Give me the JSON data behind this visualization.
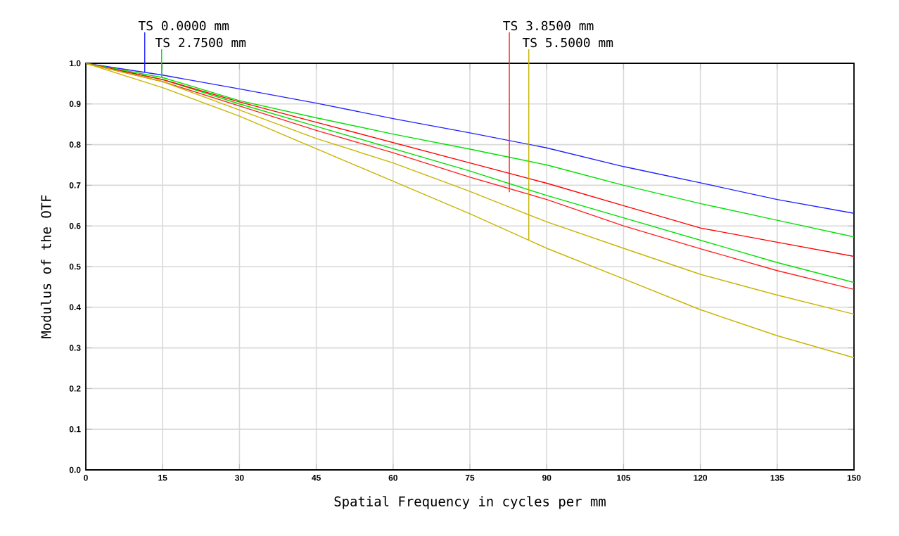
{
  "chart_data": {
    "type": "line",
    "xlabel": "Spatial Frequency in cycles per mm",
    "ylabel": "Modulus of the OTF",
    "x": [
      0,
      15,
      30,
      45,
      60,
      75,
      90,
      105,
      120,
      135,
      150
    ],
    "series": [
      {
        "color": "#2020ff",
        "values": [
          1.0,
          0.971,
          0.937,
          0.902,
          0.864,
          0.829,
          0.792,
          0.746,
          0.706,
          0.665,
          0.631
        ]
      },
      {
        "color": "#00e000",
        "values": [
          1.0,
          0.965,
          0.908,
          0.866,
          0.826,
          0.789,
          0.75,
          0.7,
          0.655,
          0.614,
          0.573
        ]
      },
      {
        "color": "#00e000",
        "values": [
          1.0,
          0.96,
          0.9,
          0.845,
          0.79,
          0.735,
          0.675,
          0.62,
          0.565,
          0.51,
          0.461
        ]
      },
      {
        "color": "#ff0000",
        "values": [
          1.0,
          0.96,
          0.905,
          0.855,
          0.805,
          0.755,
          0.705,
          0.65,
          0.595,
          0.56,
          0.525
        ]
      },
      {
        "color": "#ff2020",
        "values": [
          1.0,
          0.955,
          0.895,
          0.835,
          0.78,
          0.72,
          0.665,
          0.6,
          0.544,
          0.49,
          0.444
        ]
      },
      {
        "color": "#c8b400",
        "values": [
          1.0,
          0.955,
          0.885,
          0.815,
          0.755,
          0.685,
          0.61,
          0.545,
          0.481,
          0.43,
          0.383
        ]
      },
      {
        "color": "#c8b400",
        "values": [
          1.0,
          0.94,
          0.87,
          0.79,
          0.71,
          0.63,
          0.545,
          0.47,
          0.394,
          0.33,
          0.276
        ]
      }
    ],
    "annotations": [
      {
        "text": "TS 0.0000 mm",
        "x": 11.5,
        "y": 0.979
      },
      {
        "text": "TS 2.7500 mm",
        "x": 14.8,
        "y": 0.967
      },
      {
        "text": "TS 3.8500 mm",
        "x": 82.7,
        "y": 0.683
      },
      {
        "text": "TS 5.5000 mm",
        "x": 86.5,
        "y": 0.565
      }
    ],
    "xlim": [
      0,
      150
    ],
    "ylim": [
      0,
      1
    ],
    "xticks": [
      0,
      15,
      30,
      45,
      60,
      75,
      90,
      105,
      120,
      135,
      150
    ],
    "yticks": [
      {
        "value": 0,
        "label": "0.0"
      },
      {
        "value": 0.1,
        "label": "0.1"
      },
      {
        "value": 0.2,
        "label": "0.2"
      },
      {
        "value": 0.3,
        "label": "0.3"
      },
      {
        "value": 0.4,
        "label": "0.4"
      },
      {
        "value": 0.5,
        "label": "0.5"
      },
      {
        "value": 0.6,
        "label": "0.6"
      },
      {
        "value": 0.7,
        "label": "0.7"
      },
      {
        "value": 0.8,
        "label": "0.8"
      },
      {
        "value": 0.9,
        "label": "0.9"
      },
      {
        "value": 1.0,
        "label": "1.0"
      }
    ],
    "grid": true,
    "marker": "none",
    "line_style": "solid"
  }
}
